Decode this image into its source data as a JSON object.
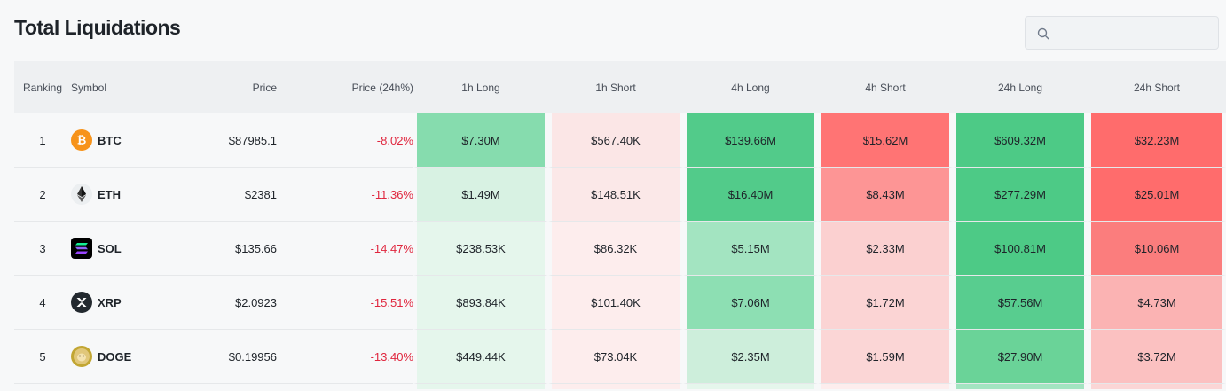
{
  "title": "Total Liquidations",
  "search": {
    "placeholder": "",
    "icon": "search-icon"
  },
  "columns": [
    "Ranking",
    "Symbol",
    "Price",
    "Price (24h%)",
    "1h Long",
    "1h Short",
    "4h Long",
    "4h Short",
    "24h Long",
    "24h Short"
  ],
  "rows": [
    {
      "rank": "1",
      "symbol": "BTC",
      "icon": "bitcoin-icon",
      "price": "$87985.1",
      "change": "-8.02%",
      "cells": [
        "$7.30M",
        "$567.40K",
        "$139.66M",
        "$15.62M",
        "$609.32M",
        "$32.23M"
      ],
      "colors": [
        "#86dcae",
        "#fbe6e6",
        "#52cb8a",
        "#ff7474",
        "#4dca86",
        "#ff6c6c"
      ]
    },
    {
      "rank": "2",
      "symbol": "ETH",
      "icon": "ethereum-icon",
      "price": "$2381",
      "change": "-11.36%",
      "cells": [
        "$1.49M",
        "$148.51K",
        "$16.40M",
        "$8.43M",
        "$277.29M",
        "$25.01M"
      ],
      "colors": [
        "#d8f2e3",
        "#fbe8e8",
        "#52cb8a",
        "#fd9595",
        "#4dca86",
        "#ff6c6c"
      ]
    },
    {
      "rank": "3",
      "symbol": "SOL",
      "icon": "solana-icon",
      "price": "$135.66",
      "change": "-14.47%",
      "cells": [
        "$238.53K",
        "$86.32K",
        "$5.15M",
        "$2.33M",
        "$100.81M",
        "$10.06M"
      ],
      "colors": [
        "#e5f6ec",
        "#fdeded",
        "#a3e4c1",
        "#fbd0d0",
        "#4dca86",
        "#fb7d7d"
      ]
    },
    {
      "rank": "4",
      "symbol": "XRP",
      "icon": "xrp-icon",
      "price": "$2.0923",
      "change": "-15.51%",
      "cells": [
        "$893.84K",
        "$101.40K",
        "$7.06M",
        "$1.72M",
        "$57.56M",
        "$4.73M"
      ],
      "colors": [
        "#e5f6ec",
        "#fdeded",
        "#8ddfb3",
        "#fbd4d4",
        "#58cd8f",
        "#fbb3b3"
      ]
    },
    {
      "rank": "5",
      "symbol": "DOGE",
      "icon": "dogecoin-icon",
      "price": "$0.19956",
      "change": "-13.40%",
      "cells": [
        "$449.44K",
        "$73.04K",
        "$2.35M",
        "$1.59M",
        "$27.90M",
        "$3.72M"
      ],
      "colors": [
        "#e5f6ec",
        "#fdeded",
        "#cdeedb",
        "#fbd6d6",
        "#6ad398",
        "#fbc1c1"
      ]
    }
  ],
  "partial_row_colors": [
    "#e5f6ec",
    "#fdeded",
    "#e5f6ec",
    "#fdeded",
    "#a3e4c1",
    "#fbd6d6"
  ]
}
